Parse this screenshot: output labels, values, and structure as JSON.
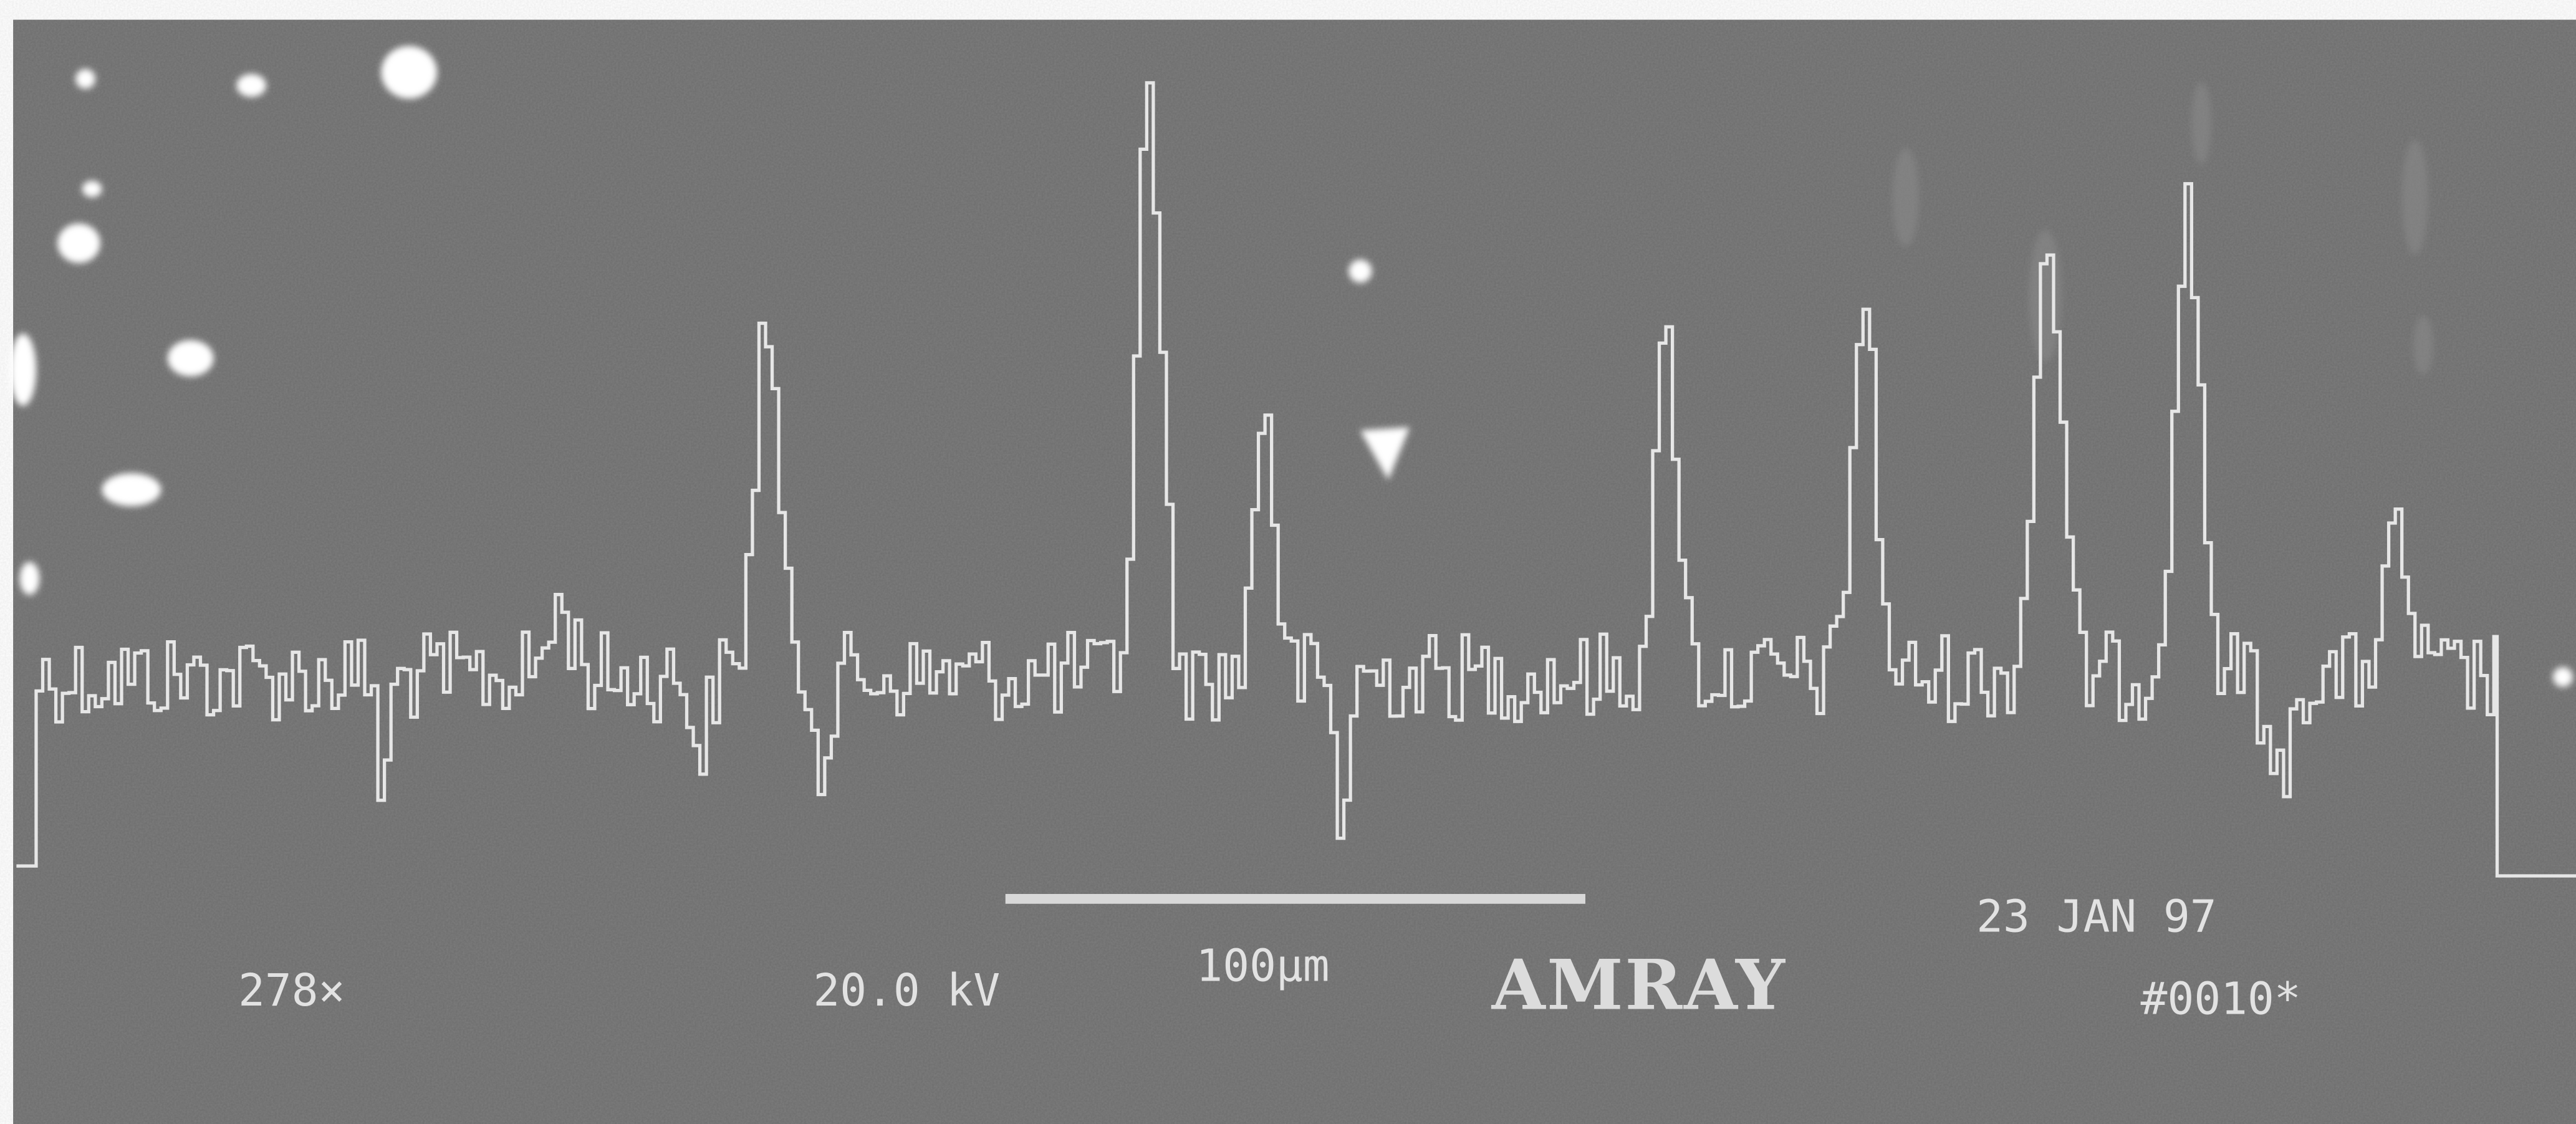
{
  "micrograph": {
    "magnification": "278×",
    "voltage": "20.0 kV",
    "scale_bar": "100µm",
    "brand": "AMRAY",
    "date": "23 JAN 97",
    "image_number": "#0010*"
  }
}
